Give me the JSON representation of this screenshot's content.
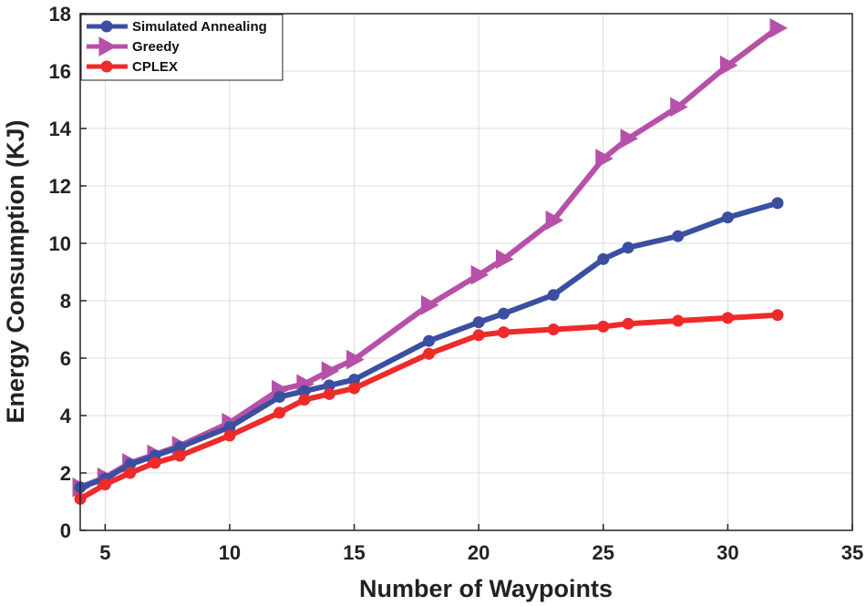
{
  "chart_data": {
    "type": "line",
    "title": "",
    "xlabel": "Number of Waypoints",
    "ylabel": "Energy Consumption (KJ)",
    "xlim": [
      4,
      35
    ],
    "ylim": [
      0,
      18
    ],
    "xticks": [
      5,
      10,
      15,
      20,
      25,
      30,
      35
    ],
    "yticks": [
      0,
      2,
      4,
      6,
      8,
      10,
      12,
      14,
      16,
      18
    ],
    "grid": true,
    "legend_position": "top-left",
    "series": [
      {
        "name": "Simulated Annealing",
        "color": "#3b4fa0",
        "marker": "circle",
        "x": [
          4,
          5,
          6,
          7,
          8,
          10,
          12,
          13,
          14,
          15,
          18,
          20,
          21,
          23,
          25,
          26,
          28,
          30,
          32
        ],
        "y": [
          1.5,
          1.8,
          2.3,
          2.6,
          2.9,
          3.6,
          4.65,
          4.85,
          5.05,
          5.25,
          6.6,
          7.25,
          7.55,
          8.2,
          9.45,
          9.85,
          10.25,
          10.9,
          11.4
        ]
      },
      {
        "name": "Greedy",
        "color": "#b650a8",
        "marker": "triangle-right",
        "x": [
          4,
          5,
          6,
          7,
          8,
          10,
          12,
          13,
          14,
          15,
          18,
          20,
          21,
          23,
          25,
          26,
          28,
          30,
          32
        ],
        "y": [
          1.5,
          1.85,
          2.35,
          2.65,
          2.95,
          3.75,
          4.9,
          5.1,
          5.55,
          5.95,
          7.85,
          8.9,
          9.45,
          10.8,
          12.95,
          13.65,
          14.75,
          16.2,
          17.5
        ]
      },
      {
        "name": "CPLEX",
        "color": "#ee2a2a",
        "marker": "circle",
        "x": [
          4,
          5,
          6,
          7,
          8,
          10,
          12,
          13,
          14,
          15,
          18,
          20,
          21,
          23,
          25,
          26,
          28,
          30,
          32
        ],
        "y": [
          1.1,
          1.6,
          2.0,
          2.35,
          2.6,
          3.3,
          4.1,
          4.55,
          4.75,
          4.95,
          6.15,
          6.8,
          6.9,
          7.0,
          7.1,
          7.2,
          7.3,
          7.4,
          7.5
        ]
      }
    ]
  }
}
